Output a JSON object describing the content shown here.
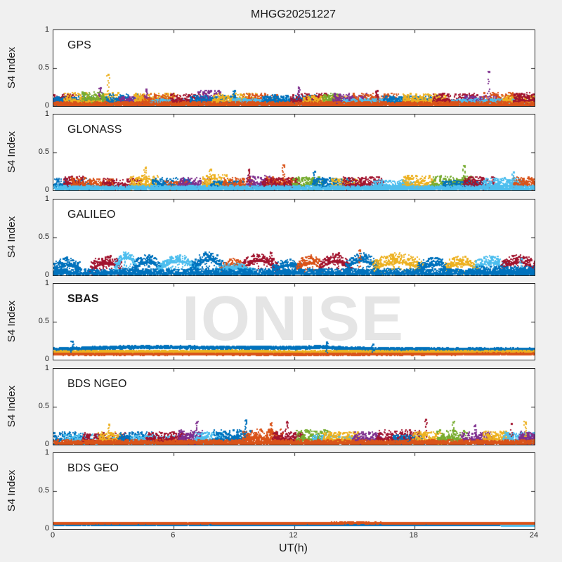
{
  "chart_data": {
    "type": "scatter",
    "title": "MHGG20251227",
    "xlabel": "UT(h)",
    "ylabel": "S4 Index",
    "watermark": "IONISE",
    "xlim": [
      0,
      24
    ],
    "ylim": [
      0,
      1
    ],
    "xticks": [
      0,
      6,
      12,
      18,
      24
    ],
    "yticks": [
      0,
      0.5,
      1
    ],
    "grid": false,
    "legend": false,
    "colors": {
      "background": "#f0f0f0",
      "panel_background": "#ffffff",
      "axis": "#262626",
      "watermark": "#e5e5e5",
      "palette": [
        "#0072BD",
        "#D95319",
        "#EDB120",
        "#7E2F8E",
        "#77AC30",
        "#4DBEEE",
        "#A2142F"
      ]
    },
    "palette": [
      "#0072BD",
      "#D95319",
      "#EDB120",
      "#7E2F8E",
      "#77AC30",
      "#4DBEEE",
      "#A2142F"
    ],
    "panels": [
      {
        "label": "GPS",
        "bold": false,
        "seed": 7,
        "segments": [
          [
            6,
            0,
            1.2,
            0.06,
            0.05
          ],
          [
            3,
            0,
            3,
            0.025,
            0.03
          ],
          [
            0,
            0,
            2,
            0.05,
            0.04
          ],
          [
            2,
            0.5,
            3.3,
            0.06,
            0.06
          ],
          [
            4,
            1.4,
            2.7,
            0.1,
            0.045
          ],
          [
            0,
            2.6,
            4.2,
            0.06,
            0.05
          ],
          [
            3,
            3.2,
            5.6,
            0.05,
            0.04
          ],
          [
            2,
            4,
            6,
            0.075,
            0.05
          ],
          [
            1,
            4.4,
            6.3,
            0.06,
            0.05
          ],
          [
            5,
            4.8,
            8.5,
            0.03,
            0.03
          ],
          [
            6,
            5.8,
            7.6,
            0.07,
            0.05
          ],
          [
            3,
            7.2,
            8.3,
            0.09,
            0.06
          ],
          [
            0,
            6.8,
            9.2,
            0.06,
            0.04
          ],
          [
            2,
            7.9,
            10.2,
            0.07,
            0.05
          ],
          [
            1,
            9.4,
            11.2,
            0.07,
            0.05
          ],
          [
            5,
            8.8,
            12.5,
            0.04,
            0.03
          ],
          [
            0,
            10.4,
            13.2,
            0.07,
            0.04
          ],
          [
            6,
            11.8,
            13.6,
            0.07,
            0.05
          ],
          [
            2,
            12.4,
            14.6,
            0.06,
            0.04
          ],
          [
            4,
            13.4,
            14.3,
            0.09,
            0.04
          ],
          [
            3,
            13.9,
            15.6,
            0.07,
            0.05
          ],
          [
            1,
            14.9,
            17.2,
            0.07,
            0.05
          ],
          [
            5,
            14.4,
            18.5,
            0.04,
            0.03
          ],
          [
            0,
            16.4,
            19.2,
            0.06,
            0.04
          ],
          [
            2,
            17.4,
            19.6,
            0.07,
            0.05
          ],
          [
            6,
            18.9,
            21.2,
            0.07,
            0.05
          ],
          [
            3,
            20.4,
            22.2,
            0.06,
            0.04
          ],
          [
            1,
            21.4,
            23.2,
            0.08,
            0.05
          ],
          [
            5,
            19.8,
            24,
            0.04,
            0.03
          ],
          [
            2,
            22.4,
            24,
            0.06,
            0.04
          ],
          [
            6,
            22.9,
            24,
            0.08,
            0.05
          ],
          [
            1,
            0,
            24,
            0.02,
            0.02
          ]
        ],
        "spikes": [
          [
            2,
            2.7,
            0.42
          ],
          [
            3,
            2.3,
            0.24
          ],
          [
            3,
            4.6,
            0.22
          ],
          [
            0,
            9.0,
            0.2
          ],
          [
            3,
            12.2,
            0.24
          ],
          [
            6,
            16.1,
            0.2
          ],
          [
            3,
            21.7,
            0.45
          ]
        ]
      },
      {
        "label": "GLONASS",
        "bold": false,
        "seed": 11,
        "segments": [
          [
            0,
            0,
            1.8,
            0.06,
            0.05
          ],
          [
            6,
            0.5,
            1.5,
            0.09,
            0.05
          ],
          [
            1,
            0.8,
            3,
            0.07,
            0.05
          ],
          [
            6,
            2.4,
            4.4,
            0.06,
            0.05
          ],
          [
            2,
            3.8,
            5.2,
            0.08,
            0.06
          ],
          [
            0,
            4.9,
            6.8,
            0.07,
            0.05
          ],
          [
            1,
            5.5,
            7,
            0.05,
            0.04
          ],
          [
            3,
            6.2,
            7.8,
            0.07,
            0.05
          ],
          [
            2,
            7.4,
            8.8,
            0.09,
            0.06
          ],
          [
            0,
            7.8,
            9.5,
            0.05,
            0.04
          ],
          [
            1,
            8.4,
            10,
            0.07,
            0.05
          ],
          [
            3,
            9.6,
            10.9,
            0.08,
            0.06
          ],
          [
            1,
            10.6,
            12.1,
            0.08,
            0.05
          ],
          [
            6,
            10.4,
            12.2,
            0.07,
            0.05
          ],
          [
            4,
            11.9,
            13.4,
            0.08,
            0.05
          ],
          [
            0,
            12.9,
            15,
            0.07,
            0.05
          ],
          [
            2,
            13.8,
            15.3,
            0.06,
            0.05
          ],
          [
            6,
            14.4,
            16.4,
            0.08,
            0.05
          ],
          [
            5,
            15.9,
            18,
            0.06,
            0.04
          ],
          [
            2,
            17.4,
            19,
            0.08,
            0.06
          ],
          [
            4,
            18.8,
            20.9,
            0.08,
            0.06
          ],
          [
            0,
            19.4,
            21.5,
            0.05,
            0.04
          ],
          [
            6,
            20.4,
            22,
            0.08,
            0.05
          ],
          [
            5,
            21.4,
            23.4,
            0.07,
            0.05
          ],
          [
            1,
            22.9,
            24,
            0.08,
            0.05
          ],
          [
            5,
            0,
            24,
            0.025,
            0.02
          ]
        ],
        "spikes": [
          [
            2,
            4.55,
            0.3
          ],
          [
            2,
            7.8,
            0.28
          ],
          [
            6,
            9.7,
            0.27
          ],
          [
            1,
            11.45,
            0.33
          ],
          [
            0,
            13.0,
            0.25
          ],
          [
            4,
            20.45,
            0.32
          ],
          [
            5,
            22.9,
            0.24
          ]
        ]
      },
      {
        "label": "GALILEO",
        "bold": false,
        "seed": 13,
        "segments": [
          [
            0,
            0,
            1.3,
            0.08,
            0.05,
            0.06
          ],
          [
            6,
            1.8,
            3.4,
            0.07,
            0.05,
            0.1
          ],
          [
            5,
            3.0,
            4.2,
            0.06,
            0.04,
            0.18
          ],
          [
            0,
            3.9,
            5.4,
            0.06,
            0.05,
            0.12
          ],
          [
            5,
            5.2,
            7.2,
            0.05,
            0.04,
            0.14
          ],
          [
            0,
            6.8,
            8.6,
            0.05,
            0.05,
            0.16
          ],
          [
            1,
            8.3,
            9.6,
            0.06,
            0.04,
            0.09
          ],
          [
            6,
            9.3,
            11.2,
            0.06,
            0.05,
            0.14
          ],
          [
            0,
            10.9,
            12.4,
            0.06,
            0.04,
            0.08
          ],
          [
            1,
            12.1,
            13.4,
            0.07,
            0.05,
            0.1
          ],
          [
            6,
            13.2,
            14.8,
            0.07,
            0.05,
            0.12
          ],
          [
            0,
            14.5,
            16.2,
            0.06,
            0.05,
            0.14
          ],
          [
            2,
            15.9,
            18.4,
            0.08,
            0.06,
            0.1
          ],
          [
            0,
            18.1,
            19.8,
            0.06,
            0.05,
            0.08
          ],
          [
            2,
            19.5,
            21.2,
            0.08,
            0.05,
            0.08
          ],
          [
            5,
            20.9,
            22.6,
            0.07,
            0.05,
            0.1
          ],
          [
            6,
            22.3,
            24,
            0.08,
            0.05,
            0.1
          ],
          [
            5,
            8,
            10,
            0.04,
            0.03,
            0.06
          ],
          [
            0,
            21,
            24,
            0.05,
            0.04,
            0
          ],
          [
            0,
            0,
            24,
            0.03,
            0.03,
            0
          ]
        ],
        "spikes": [
          [
            5,
            3.55,
            0.3
          ],
          [
            0,
            4.8,
            0.25
          ],
          [
            0,
            7.6,
            0.28
          ],
          [
            6,
            10.8,
            0.3
          ],
          [
            6,
            14.2,
            0.3
          ],
          [
            1,
            15.25,
            0.33
          ],
          [
            2,
            16.9,
            0.25
          ],
          [
            5,
            23.3,
            0.22
          ]
        ]
      },
      {
        "label": "SBAS",
        "bold": true,
        "seed": 17,
        "bands": [
          {
            "c": 0,
            "n": 0.015,
            "pts": [
              [
                0,
                0.14
              ],
              [
                2,
                0.16
              ],
              [
                4,
                0.17
              ],
              [
                6,
                0.17
              ],
              [
                8,
                0.165
              ],
              [
                10,
                0.165
              ],
              [
                12,
                0.16
              ],
              [
                13.5,
                0.175
              ],
              [
                14,
                0.16
              ],
              [
                16,
                0.145
              ],
              [
                18,
                0.145
              ],
              [
                20,
                0.14
              ],
              [
                22,
                0.14
              ],
              [
                24,
                0.14
              ]
            ]
          },
          {
            "c": 2,
            "n": 0.012,
            "pts": [
              [
                0,
                0.105
              ],
              [
                3,
                0.112
              ],
              [
                6,
                0.11
              ],
              [
                9,
                0.115
              ],
              [
                12,
                0.105
              ],
              [
                15,
                0.11
              ],
              [
                18,
                0.105
              ],
              [
                21,
                0.108
              ],
              [
                24,
                0.11
              ]
            ]
          },
          {
            "c": 1,
            "n": 0.008,
            "pts": [
              [
                0,
                0.08
              ],
              [
                4,
                0.078
              ],
              [
                8,
                0.08
              ],
              [
                12,
                0.075
              ],
              [
                16,
                0.078
              ],
              [
                20,
                0.08
              ],
              [
                24,
                0.082
              ]
            ]
          }
        ],
        "spikes": [
          [
            0,
            0.9,
            0.24
          ],
          [
            0,
            13.6,
            0.23
          ],
          [
            0,
            15.9,
            0.2
          ]
        ]
      },
      {
        "label": "BDS NGEO",
        "bold": false,
        "seed": 23,
        "segments": [
          [
            0,
            0,
            1.6,
            0.07,
            0.05
          ],
          [
            5,
            0.5,
            3,
            0.06,
            0.04
          ],
          [
            6,
            1.4,
            3.6,
            0.06,
            0.05
          ],
          [
            2,
            2.2,
            3.4,
            0.07,
            0.05
          ],
          [
            0,
            3.2,
            5,
            0.07,
            0.05
          ],
          [
            5,
            3.8,
            6,
            0.05,
            0.04
          ],
          [
            6,
            4.6,
            6.6,
            0.07,
            0.05
          ],
          [
            3,
            6.2,
            7.4,
            0.08,
            0.06
          ],
          [
            5,
            7,
            8.4,
            0.07,
            0.05
          ],
          [
            0,
            7.9,
            9.8,
            0.08,
            0.06
          ],
          [
            1,
            9.4,
            11.4,
            0.09,
            0.06
          ],
          [
            6,
            10.9,
            12.4,
            0.07,
            0.05
          ],
          [
            4,
            12.1,
            13.8,
            0.08,
            0.06
          ],
          [
            5,
            12.9,
            15,
            0.05,
            0.04
          ],
          [
            2,
            13.4,
            15.2,
            0.07,
            0.05
          ],
          [
            3,
            14.9,
            16.4,
            0.07,
            0.05
          ],
          [
            6,
            16.1,
            18.3,
            0.08,
            0.06
          ],
          [
            0,
            16.9,
            18.5,
            0.05,
            0.04
          ],
          [
            2,
            17.9,
            19.4,
            0.07,
            0.05
          ],
          [
            4,
            19.1,
            20.6,
            0.08,
            0.06
          ],
          [
            3,
            20.3,
            21.8,
            0.07,
            0.05
          ],
          [
            2,
            21.4,
            22.8,
            0.08,
            0.05
          ],
          [
            5,
            22.4,
            24,
            0.07,
            0.05
          ],
          [
            3,
            23.2,
            24,
            0.09,
            0.05
          ],
          [
            1,
            0,
            24,
            0.025,
            0.02
          ]
        ],
        "spikes": [
          [
            2,
            2.75,
            0.27
          ],
          [
            3,
            7.1,
            0.3
          ],
          [
            0,
            9.55,
            0.32
          ],
          [
            1,
            10.8,
            0.28
          ],
          [
            6,
            11.6,
            0.3
          ],
          [
            6,
            18.55,
            0.33
          ],
          [
            4,
            19.9,
            0.3
          ],
          [
            3,
            21.0,
            0.25
          ],
          [
            6,
            22.8,
            0.28
          ],
          [
            2,
            23.5,
            0.3
          ]
        ]
      },
      {
        "label": "BDS GEO",
        "bold": false,
        "seed": 29,
        "bands": [
          {
            "c": 0,
            "n": 0.005,
            "pts": [
              [
                0,
                0.065
              ],
              [
                6,
                0.063
              ],
              [
                12,
                0.06
              ],
              [
                18,
                0.06
              ],
              [
                24,
                0.058
              ]
            ]
          },
          {
            "c": 5,
            "n": 0.004,
            "pts": [
              [
                22.3,
                0.055
              ],
              [
                24,
                0.055
              ]
            ]
          },
          {
            "c": 1,
            "n": 0.005,
            "pts": [
              [
                0,
                0.08
              ],
              [
                3,
                0.082
              ],
              [
                6,
                0.08
              ],
              [
                9,
                0.082
              ],
              [
                12,
                0.08
              ],
              [
                15,
                0.086
              ],
              [
                18,
                0.08
              ],
              [
                21,
                0.08
              ],
              [
                24,
                0.078
              ]
            ]
          }
        ],
        "spikes": []
      }
    ]
  }
}
